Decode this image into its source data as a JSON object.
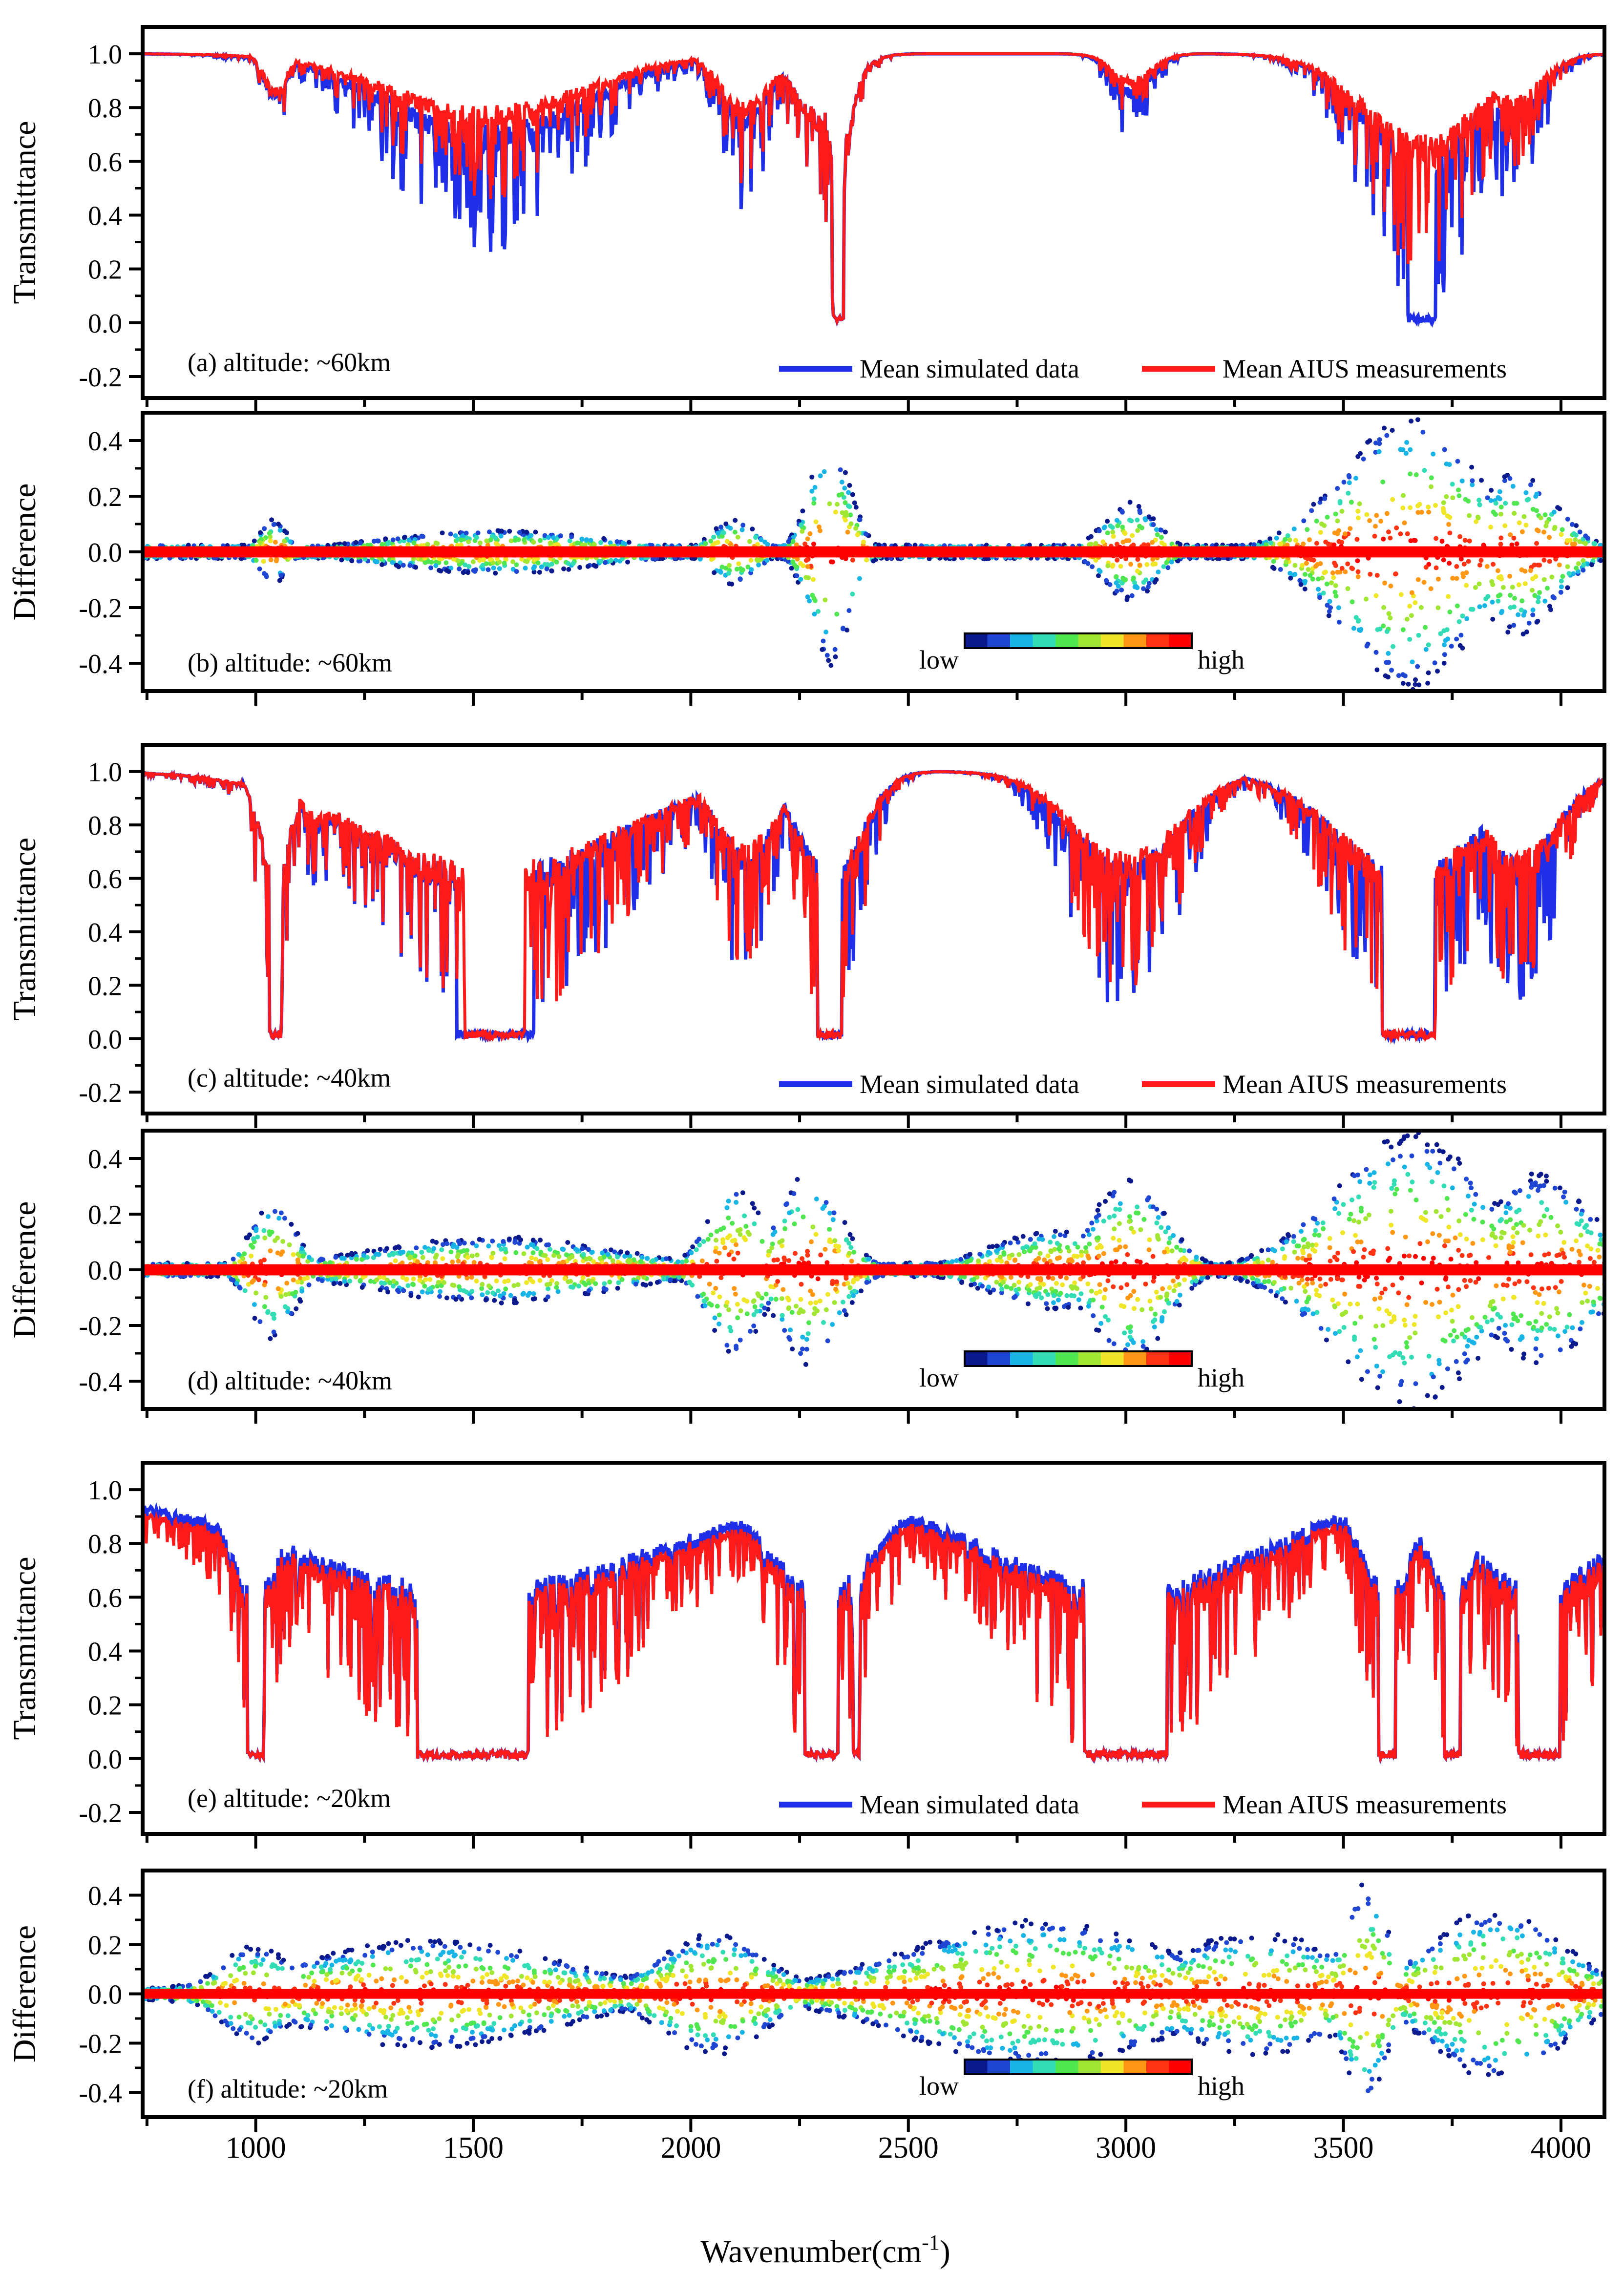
{
  "figure": {
    "x_axis_label_prefix": "Wavenumber(cm",
    "x_axis_label_sup": "-1",
    "x_axis_label_suffix": ")"
  },
  "legend": {
    "simulated": "Mean simulated data",
    "measured": "Mean AIUS measurements",
    "colorbar_low": "low",
    "colorbar_high": "high"
  },
  "colors": {
    "simulated": "#1f2fe8",
    "measured": "#ff1a1a",
    "colormap": [
      "#0a1a8c",
      "#1e46d2",
      "#19b4e6",
      "#32dcb4",
      "#50e650",
      "#a0e632",
      "#f0e628",
      "#ff9614",
      "#ff3214",
      "#ff0000"
    ]
  },
  "chart_data": [
    {
      "id": "a",
      "type": "line",
      "panel_label": "(a) altitude: ~60km",
      "ylabel": "Transmittance",
      "xlim": [
        740,
        4100
      ],
      "ylim": [
        -0.28,
        1.1
      ],
      "yticks": [
        -0.2,
        0.0,
        0.2,
        0.4,
        0.6,
        0.8,
        1.0
      ],
      "series": [
        {
          "name": "Mean simulated data",
          "color": "#1f2fe8",
          "baseline": 1.0,
          "bands": [
            [
              1045,
              25,
              0.38
            ],
            [
              1530,
              220,
              0.75
            ],
            [
              2125,
              55,
              0.6
            ],
            [
              2340,
              30,
              1.04
            ],
            [
              2300,
              60,
              0.6
            ],
            [
              3015,
              45,
              0.35
            ],
            [
              3680,
              130,
              0.98
            ],
            [
              3880,
              70,
              0.6
            ]
          ]
        },
        {
          "name": "Mean AIUS measurements",
          "color": "#ff1a1a",
          "baseline": 1.0,
          "bands": [
            [
              1045,
              25,
              0.36
            ],
            [
              1530,
              220,
              0.55
            ],
            [
              2125,
              55,
              0.5
            ],
            [
              2340,
              30,
              1.04
            ],
            [
              2300,
              60,
              0.6
            ],
            [
              3015,
              45,
              0.25
            ],
            [
              3680,
              130,
              0.85
            ],
            [
              3880,
              70,
              0.45
            ]
          ]
        }
      ],
      "legend": "bottom-right"
    },
    {
      "id": "b",
      "type": "scatter",
      "panel_label": "(b) altitude: ~60km",
      "ylabel": "Difference",
      "xlim": [
        740,
        4100
      ],
      "ylim": [
        -0.5,
        0.5
      ],
      "yticks": [
        -0.4,
        -0.2,
        0.0,
        0.2,
        0.4
      ],
      "spread_bands": [
        [
          1040,
          30,
          0.12
        ],
        [
          1550,
          250,
          0.08
        ],
        [
          2100,
          50,
          0.12
        ],
        [
          2320,
          45,
          0.42
        ],
        [
          3010,
          60,
          0.18
        ],
        [
          3650,
          150,
          0.5
        ],
        [
          3900,
          90,
          0.3
        ]
      ],
      "colorbar": "bottom-center"
    },
    {
      "id": "c",
      "type": "line",
      "panel_label": "(c) altitude: ~40km",
      "ylabel": "Transmittance",
      "xlim": [
        740,
        4100
      ],
      "ylim": [
        -0.28,
        1.1
      ],
      "yticks": [
        -0.2,
        0.0,
        0.2,
        0.4,
        0.6,
        0.8,
        1.0
      ],
      "series": [
        {
          "name": "Mean simulated data",
          "color": "#1f2fe8",
          "baseline": 1.0,
          "bands": [
            [
              1045,
              35,
              1.02
            ],
            [
              1150,
              50,
              0.5
            ],
            [
              1550,
              280,
              1.0
            ],
            [
              2125,
              70,
              0.8
            ],
            [
              2320,
              70,
              1.03
            ],
            [
              3000,
              120,
              0.95
            ],
            [
              3650,
              160,
              1.02
            ],
            [
              3900,
              90,
              0.9
            ]
          ]
        },
        {
          "name": "Mean AIUS measurements",
          "color": "#ff1a1a",
          "baseline": 1.0,
          "bands": [
            [
              1045,
              35,
              1.02
            ],
            [
              1150,
              50,
              0.45
            ],
            [
              1550,
              280,
              0.98
            ],
            [
              2125,
              70,
              0.75
            ],
            [
              2320,
              70,
              1.03
            ],
            [
              3000,
              120,
              0.85
            ],
            [
              3650,
              160,
              1.02
            ],
            [
              3900,
              90,
              0.85
            ]
          ]
        }
      ],
      "legend": "bottom-right"
    },
    {
      "id": "d",
      "type": "scatter",
      "panel_label": "(d) altitude: ~40km",
      "ylabel": "Difference",
      "xlim": [
        740,
        4100
      ],
      "ylim": [
        -0.5,
        0.5
      ],
      "yticks": [
        -0.4,
        -0.2,
        0.0,
        0.2,
        0.4
      ],
      "spread_bands": [
        [
          1040,
          50,
          0.25
        ],
        [
          1550,
          280,
          0.12
        ],
        [
          2100,
          60,
          0.32
        ],
        [
          2270,
          70,
          0.35
        ],
        [
          3010,
          80,
          0.35
        ],
        [
          3650,
          170,
          0.5
        ],
        [
          3950,
          120,
          0.35
        ],
        [
          2850,
          150,
          0.15
        ]
      ],
      "colorbar": "bottom-center"
    },
    {
      "id": "e",
      "type": "line",
      "panel_label": "(e) altitude: ~20km",
      "ylabel": "Transmittance",
      "xlim": [
        740,
        4100
      ],
      "ylim": [
        -0.28,
        1.1
      ],
      "yticks": [
        -0.2,
        0.0,
        0.2,
        0.4,
        0.6,
        0.8,
        1.0
      ],
      "series": [
        {
          "name": "Mean simulated data",
          "color": "#1f2fe8",
          "baseline": 1.0,
          "bands": [
            [
              1000,
              60,
              1.0
            ],
            [
              1500,
              400,
              1.0
            ],
            [
              2300,
              120,
              1.0
            ],
            [
              2380,
              20,
              1.0
            ],
            [
              3000,
              300,
              1.0
            ],
            [
              3600,
              60,
              1.0
            ],
            [
              3750,
              60,
              1.0
            ],
            [
              3950,
              150,
              1.0
            ]
          ]
        },
        {
          "name": "Mean AIUS measurements",
          "color": "#ff1a1a",
          "baseline": 0.97,
          "bands": [
            [
              1000,
              60,
              1.0
            ],
            [
              1500,
              400,
              1.0
            ],
            [
              2300,
              120,
              1.0
            ],
            [
              2380,
              20,
              1.0
            ],
            [
              3000,
              300,
              1.0
            ],
            [
              3600,
              60,
              1.0
            ],
            [
              3750,
              60,
              1.0
            ],
            [
              3950,
              150,
              1.0
            ]
          ]
        }
      ],
      "legend": "bottom-right"
    },
    {
      "id": "f",
      "type": "scatter",
      "panel_label": "(f) altitude: ~20km",
      "ylabel": "Difference",
      "xlim": [
        740,
        4100
      ],
      "ylim": [
        -0.5,
        0.5
      ],
      "yticks": [
        -0.4,
        -0.2,
        0.0,
        0.2,
        0.4
      ],
      "spread_bands": [
        [
          1000,
          80,
          0.2
        ],
        [
          1400,
          300,
          0.22
        ],
        [
          2050,
          120,
          0.25
        ],
        [
          2800,
          300,
          0.3
        ],
        [
          3300,
          200,
          0.25
        ],
        [
          3550,
          50,
          0.45
        ],
        [
          3850,
          150,
          0.35
        ]
      ],
      "colorbar": "bottom-center"
    }
  ],
  "x_ticks": [
    1000,
    1500,
    2000,
    2500,
    3000,
    3500,
    4000
  ]
}
